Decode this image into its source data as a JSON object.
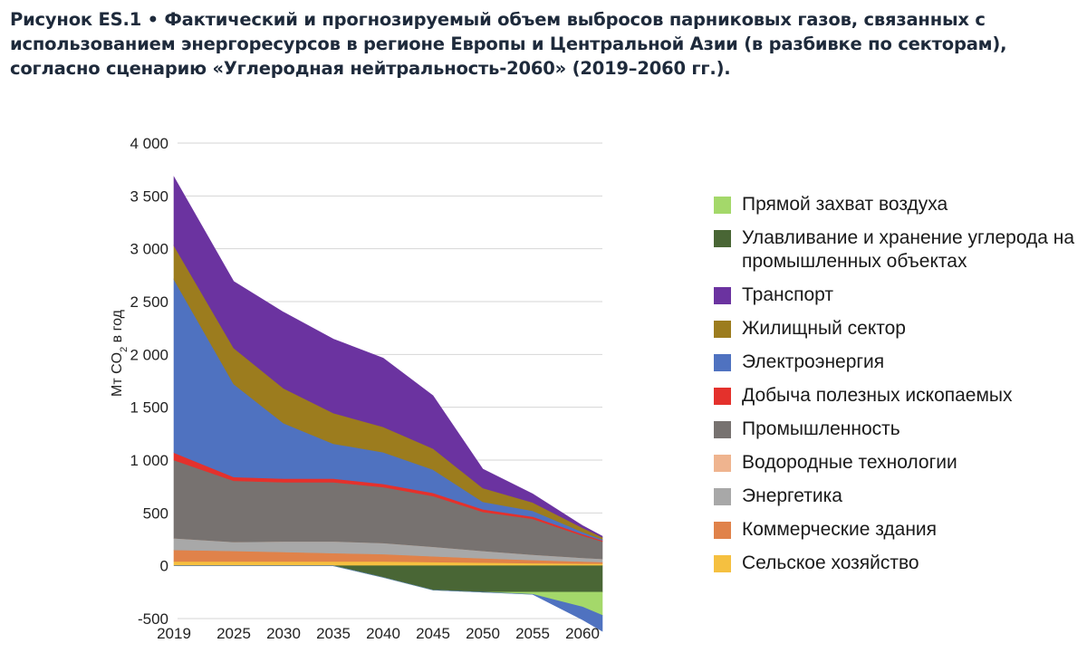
{
  "title": "Рисунок ES.1 • Фактический и прогнозируемый объем выбросов парниковых газов, связанных с использованием энергоресурсов в регионе Европы и Центральной Азии (в разбивке по секторам), согласно сценарию «Углеродная нейтральность-2060» (2019–2060 гг.).",
  "chart_data": {
    "type": "area",
    "ylabel_main": "Мт CO",
    "ylabel_sub": "2",
    "ylabel_tail": " в год",
    "ylim": [
      -500,
      4000
    ],
    "yticks": [
      4000,
      3500,
      3000,
      2500,
      2000,
      1500,
      1000,
      500,
      0,
      -500
    ],
    "ytick_labels": [
      "4 000",
      "3 500",
      "3 000",
      "2 500",
      "2 000",
      "1 500",
      "1 000",
      "500",
      "0",
      "-500"
    ],
    "grid": true,
    "x": [
      2019,
      2025,
      2030,
      2035,
      2040,
      2045,
      2050,
      2055,
      2060,
      2062
    ],
    "xtick_labels": [
      "2019",
      "2025",
      "2030",
      "2035",
      "2040",
      "2045",
      "2050",
      "2055",
      "2060"
    ],
    "legend_position": "right",
    "positive_series": [
      {
        "name": "Сельское хозяйство",
        "color": "#f5c040",
        "values": [
          40,
          40,
          40,
          40,
          40,
          35,
          30,
          25,
          20,
          20
        ]
      },
      {
        "name": "Коммерческие здания",
        "color": "#e0824a",
        "values": [
          110,
          100,
          90,
          80,
          70,
          55,
          40,
          30,
          20,
          15
        ]
      },
      {
        "name": "Энергетика",
        "color": "#a8a8a8",
        "values": [
          110,
          85,
          100,
          110,
          105,
          90,
          70,
          50,
          35,
          30
        ]
      },
      {
        "name": "Водородные технологии",
        "color": "#efb48f",
        "values": [
          0,
          0,
          0,
          0,
          0,
          0,
          0,
          0,
          0,
          0
        ]
      },
      {
        "name": "Промышленность",
        "color": "#777270",
        "values": [
          740,
          580,
          560,
          560,
          530,
          480,
          370,
          340,
          210,
          165
        ]
      },
      {
        "name": "Добыча полезных ископаемых",
        "color": "#e4312c",
        "values": [
          70,
          35,
          35,
          35,
          30,
          30,
          25,
          20,
          15,
          10
        ]
      },
      {
        "name": "Электроэнергия",
        "color": "#4f72c0",
        "values": [
          1640,
          880,
          525,
          330,
          300,
          220,
          70,
          55,
          20,
          10
        ]
      },
      {
        "name": "Жилищный сектор",
        "color": "#9c7c1e",
        "values": [
          320,
          340,
          330,
          290,
          240,
          200,
          130,
          80,
          40,
          20
        ]
      },
      {
        "name": "Транспорт",
        "color": "#6b33a0",
        "values": [
          650,
          630,
          720,
          700,
          650,
          500,
          180,
          80,
          20,
          10
        ]
      }
    ],
    "negative_series": [
      {
        "name": "Улавливание и хранение углерода на промышленных объектах",
        "color": "#496635",
        "values": [
          0,
          0,
          0,
          0,
          -110,
          -230,
          -250,
          -250,
          -250,
          -250
        ]
      },
      {
        "name": "Прямой захват воздуха",
        "color": "#a4d86a",
        "values": [
          0,
          0,
          0,
          0,
          0,
          0,
          0,
          -20,
          -140,
          -220
        ]
      },
      {
        "name": "Электроэнергия",
        "color": "#4f72c0",
        "values": [
          0,
          0,
          0,
          0,
          0,
          0,
          0,
          0,
          -120,
          -150
        ]
      }
    ]
  },
  "legend": [
    {
      "label": "Прямой захват воздуха",
      "color": "#a4d86a"
    },
    {
      "label": "Улавливание и хранение углерода на промышленных объектах",
      "color": "#496635"
    },
    {
      "label": "Транспорт",
      "color": "#6b33a0"
    },
    {
      "label": "Жилищный сектор",
      "color": "#9c7c1e"
    },
    {
      "label": "Электроэнергия",
      "color": "#4f72c0"
    },
    {
      "label": "Добыча полезных ископаемых",
      "color": "#e4312c"
    },
    {
      "label": "Промышленность",
      "color": "#777270"
    },
    {
      "label": "Водородные технологии",
      "color": "#efb48f"
    },
    {
      "label": "Энергетика",
      "color": "#a8a8a8"
    },
    {
      "label": "Коммерческие здания",
      "color": "#e0824a"
    },
    {
      "label": "Сельское хозяйство",
      "color": "#f5c040"
    }
  ]
}
